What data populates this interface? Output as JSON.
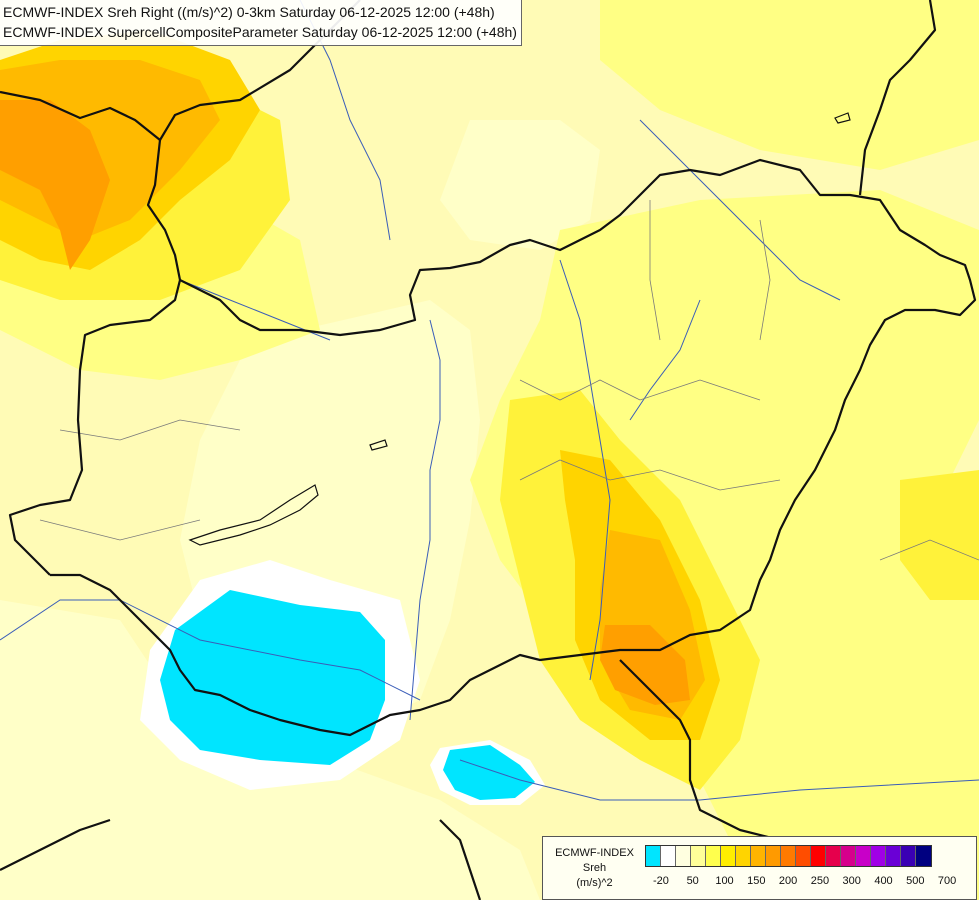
{
  "map": {
    "titles": [
      "ECMWF-INDEX Sreh Right ((m/s)^2) 0-3km Saturday 06-12-2025 12:00 (+48h)",
      "ECMWF-INDEX SupercellCompositeParameter Saturday 06-12-2025 12:00 (+48h)"
    ],
    "legend": {
      "line1": "ECMWF-INDEX",
      "line2": "Sreh",
      "line3": "(m/s)^2",
      "colors": [
        "#00e5ff",
        "#ffffff",
        "#ffffe0",
        "#ffff99",
        "#ffff4d",
        "#ffee00",
        "#ffd400",
        "#ffb400",
        "#ff9a00",
        "#ff7a00",
        "#ff4d00",
        "#ff0000",
        "#e6004c",
        "#d6008c",
        "#c800c8",
        "#a000e6",
        "#6a00d6",
        "#3a00b4",
        "#000080"
      ],
      "tick_labels": [
        "-20",
        "50",
        "100",
        "150",
        "200",
        "250",
        "300",
        "400",
        "500",
        "700"
      ]
    },
    "field_colors": {
      "background": "#fffbb6",
      "pale": "#ffffc8",
      "yellow_light": "#ffff84",
      "yellow": "#fff23a",
      "gold": "#ffd400",
      "orange_light": "#ffba00",
      "orange": "#ff9f00",
      "cyan": "#00e5ff",
      "white": "#ffffff",
      "border": "#111111",
      "river": "#3a5db8",
      "region": "#7a7a7a"
    }
  }
}
